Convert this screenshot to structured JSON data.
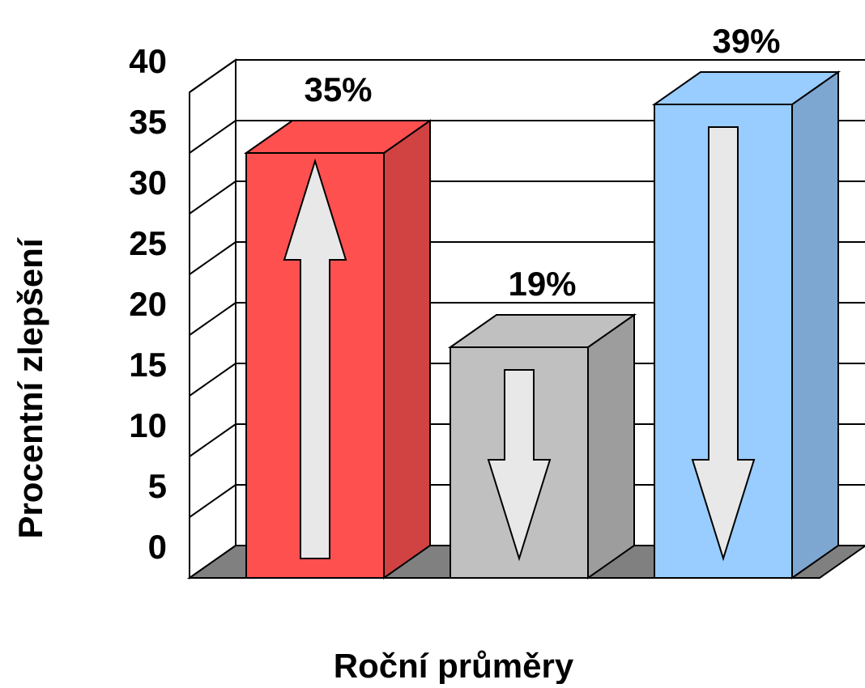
{
  "chart_data": {
    "type": "bar",
    "style": "3d",
    "categories": [
      "",
      "",
      ""
    ],
    "values": [
      35,
      19,
      39
    ],
    "data_labels": [
      "35%",
      "19%",
      "39%"
    ],
    "bar_colors": [
      "#ff5050",
      "#c0c0c0",
      "#99ccff"
    ],
    "arrow_directions": [
      "up",
      "down",
      "down"
    ],
    "ylabel": "Procentní zlepšení",
    "xlabel": "Roční průměry",
    "ylim": [
      0,
      40
    ],
    "yticks": [
      "0",
      "5",
      "10",
      "15",
      "20",
      "25",
      "30",
      "35",
      "40"
    ],
    "grid": true,
    "legend": "none"
  },
  "colors": {
    "floor": "#808080",
    "arrow_fill": "#e8e8e8",
    "gridline": "#000000"
  }
}
